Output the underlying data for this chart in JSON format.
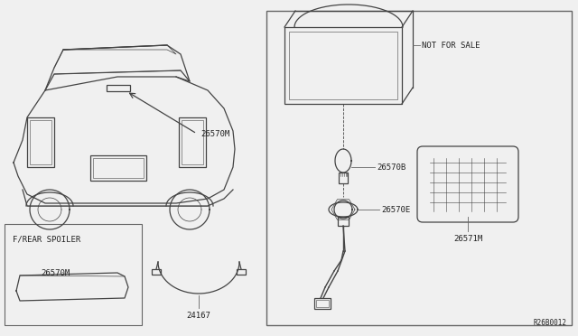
{
  "bg_color": "#f0f0f0",
  "line_color": "#444444",
  "border_color": "#666666",
  "text_color": "#222222",
  "ref_code": "R26B0012",
  "labels": {
    "not_for_sale": "NOT FOR SALE",
    "26570M_main": "26570M",
    "26570B": "26570B",
    "26570E": "26570E",
    "26571M": "26571M",
    "f_rear_spoiler": "F/REAR SPOILER",
    "26570M_sub": "26570M",
    "24167": "24167"
  },
  "font_size_label": 6.5,
  "font_size_small": 5.5,
  "font_family": "monospace"
}
